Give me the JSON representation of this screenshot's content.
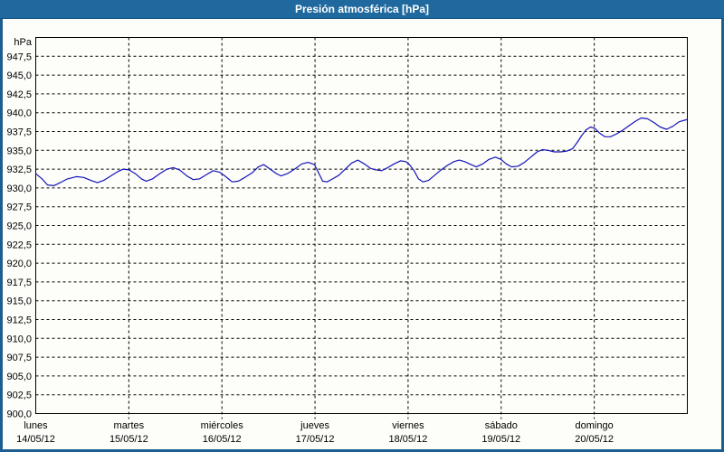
{
  "window": {
    "title": "Presión atmosférica [hPa]"
  },
  "colors": {
    "titlebar": "#1f699e",
    "border": "#1d5e90",
    "background": "#fdfdf9",
    "title_text": "#ffffff",
    "grid": "#000000",
    "line": "#1414b8"
  },
  "chart_data": {
    "type": "line",
    "title": "Presión atmosférica [hPa]",
    "ylabel": "hPa",
    "xlabel": "",
    "ylim": [
      900,
      950
    ],
    "y_tick_step": 2.5,
    "grid": "dashed",
    "legend": "none",
    "y_tick_labels": [
      "947,5",
      "945,0",
      "942,5",
      "940,0",
      "937,5",
      "935,0",
      "932,5",
      "930,0",
      "927,5",
      "925,0",
      "922,5",
      "920,0",
      "917,5",
      "915,0",
      "912,5",
      "910,0",
      "907,5",
      "905,0",
      "902,5",
      "900,0"
    ],
    "x_axis_days": [
      {
        "name": "lunes",
        "date": "14/05/12"
      },
      {
        "name": "martes",
        "date": "15/05/12"
      },
      {
        "name": "miércoles",
        "date": "16/05/12"
      },
      {
        "name": "jueves",
        "date": "17/05/12"
      },
      {
        "name": "viernes",
        "date": "18/05/12"
      },
      {
        "name": "sábado",
        "date": "19/05/12"
      },
      {
        "name": "domingo",
        "date": "20/05/12"
      }
    ],
    "series": [
      {
        "name": "Presión atmosférica",
        "unit": "hPa",
        "color": "#1414b8",
        "points_day_value": [
          [
            0.0,
            931.9
          ],
          [
            0.068,
            931.2
          ],
          [
            0.126,
            930.4
          ],
          [
            0.194,
            930.3
          ],
          [
            0.262,
            930.7
          ],
          [
            0.34,
            931.2
          ],
          [
            0.437,
            931.5
          ],
          [
            0.515,
            931.4
          ],
          [
            0.593,
            931.0
          ],
          [
            0.661,
            930.7
          ],
          [
            0.729,
            931.0
          ],
          [
            0.807,
            931.6
          ],
          [
            0.885,
            932.2
          ],
          [
            0.943,
            932.5
          ],
          [
            1.001,
            932.4
          ],
          [
            1.069,
            931.9
          ],
          [
            1.137,
            931.2
          ],
          [
            1.186,
            930.9
          ],
          [
            1.254,
            931.2
          ],
          [
            1.332,
            931.9
          ],
          [
            1.41,
            932.5
          ],
          [
            1.478,
            932.7
          ],
          [
            1.546,
            932.4
          ],
          [
            1.624,
            931.6
          ],
          [
            1.692,
            931.1
          ],
          [
            1.76,
            931.2
          ],
          [
            1.838,
            931.8
          ],
          [
            1.906,
            932.3
          ],
          [
            1.974,
            932.1
          ],
          [
            2.042,
            931.5
          ],
          [
            2.11,
            930.8
          ],
          [
            2.178,
            930.9
          ],
          [
            2.246,
            931.4
          ],
          [
            2.324,
            932.0
          ],
          [
            2.392,
            932.8
          ],
          [
            2.45,
            933.1
          ],
          [
            2.518,
            932.5
          ],
          [
            2.586,
            931.9
          ],
          [
            2.635,
            931.6
          ],
          [
            2.703,
            931.9
          ],
          [
            2.781,
            932.5
          ],
          [
            2.858,
            933.2
          ],
          [
            2.926,
            933.4
          ],
          [
            2.994,
            933.1
          ],
          [
            3.043,
            931.9
          ],
          [
            3.082,
            930.9
          ],
          [
            3.13,
            930.8
          ],
          [
            3.189,
            931.2
          ],
          [
            3.257,
            931.7
          ],
          [
            3.325,
            932.5
          ],
          [
            3.393,
            933.3
          ],
          [
            3.461,
            933.7
          ],
          [
            3.529,
            933.2
          ],
          [
            3.597,
            932.6
          ],
          [
            3.655,
            932.4
          ],
          [
            3.714,
            932.3
          ],
          [
            3.782,
            932.7
          ],
          [
            3.85,
            933.2
          ],
          [
            3.918,
            933.6
          ],
          [
            3.976,
            933.5
          ],
          [
            4.015,
            933.1
          ],
          [
            4.064,
            932.3
          ],
          [
            4.112,
            931.2
          ],
          [
            4.161,
            930.8
          ],
          [
            4.219,
            931.0
          ],
          [
            4.287,
            931.7
          ],
          [
            4.355,
            932.4
          ],
          [
            4.424,
            933.0
          ],
          [
            4.492,
            933.5
          ],
          [
            4.55,
            933.7
          ],
          [
            4.608,
            933.5
          ],
          [
            4.676,
            933.1
          ],
          [
            4.734,
            932.8
          ],
          [
            4.802,
            933.2
          ],
          [
            4.87,
            933.8
          ],
          [
            4.938,
            934.1
          ],
          [
            4.997,
            933.8
          ],
          [
            5.055,
            933.2
          ],
          [
            5.113,
            932.8
          ],
          [
            5.182,
            932.9
          ],
          [
            5.25,
            933.4
          ],
          [
            5.318,
            934.1
          ],
          [
            5.386,
            934.8
          ],
          [
            5.444,
            935.1
          ],
          [
            5.503,
            935.0
          ],
          [
            5.571,
            934.8
          ],
          [
            5.639,
            934.8
          ],
          [
            5.707,
            934.9
          ],
          [
            5.765,
            935.2
          ],
          [
            5.814,
            936.0
          ],
          [
            5.862,
            936.9
          ],
          [
            5.911,
            937.7
          ],
          [
            5.96,
            938.1
          ],
          [
            6.008,
            937.9
          ],
          [
            6.057,
            937.3
          ],
          [
            6.115,
            936.8
          ],
          [
            6.174,
            936.8
          ],
          [
            6.242,
            937.2
          ],
          [
            6.31,
            937.7
          ],
          [
            6.378,
            938.3
          ],
          [
            6.446,
            938.9
          ],
          [
            6.504,
            939.3
          ],
          [
            6.572,
            939.2
          ],
          [
            6.64,
            938.7
          ],
          [
            6.708,
            938.1
          ],
          [
            6.776,
            937.8
          ],
          [
            6.844,
            938.2
          ],
          [
            6.912,
            938.8
          ],
          [
            6.97,
            939.0
          ],
          [
            7.0,
            939.1
          ]
        ]
      }
    ]
  }
}
